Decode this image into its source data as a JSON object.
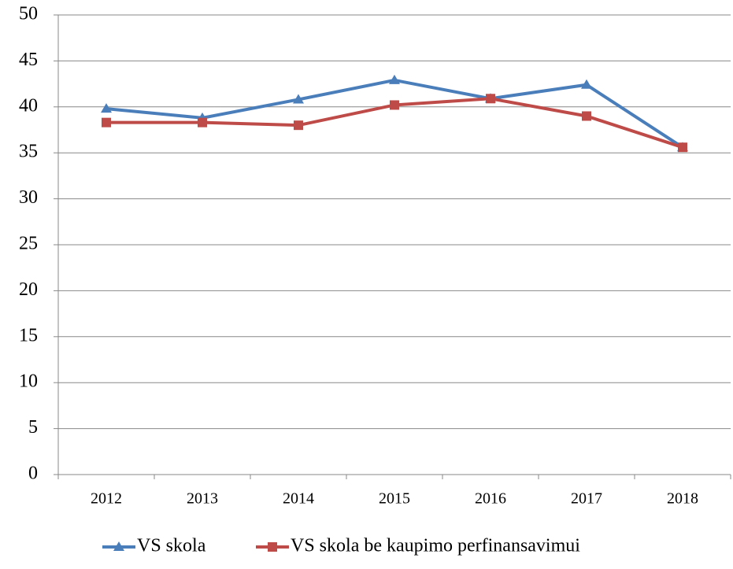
{
  "chart_data": {
    "type": "line",
    "categories": [
      "2012",
      "2013",
      "2014",
      "2015",
      "2016",
      "2017",
      "2018"
    ],
    "series": [
      {
        "name": "VS skola",
        "color": "#4a7ebb",
        "marker": "triangle",
        "values": [
          39.8,
          38.8,
          40.8,
          42.9,
          40.9,
          42.4,
          35.6
        ]
      },
      {
        "name": "VS skola be kaupimo perfinansavimui",
        "color": "#be4b48",
        "marker": "square",
        "values": [
          38.3,
          38.3,
          38.0,
          40.2,
          40.9,
          39.0,
          35.6
        ]
      }
    ],
    "ylim": [
      0,
      50
    ],
    "yticks": [
      0,
      5,
      10,
      15,
      20,
      25,
      30,
      35,
      40,
      45,
      50
    ],
    "grid": true,
    "legend": "bottom"
  }
}
